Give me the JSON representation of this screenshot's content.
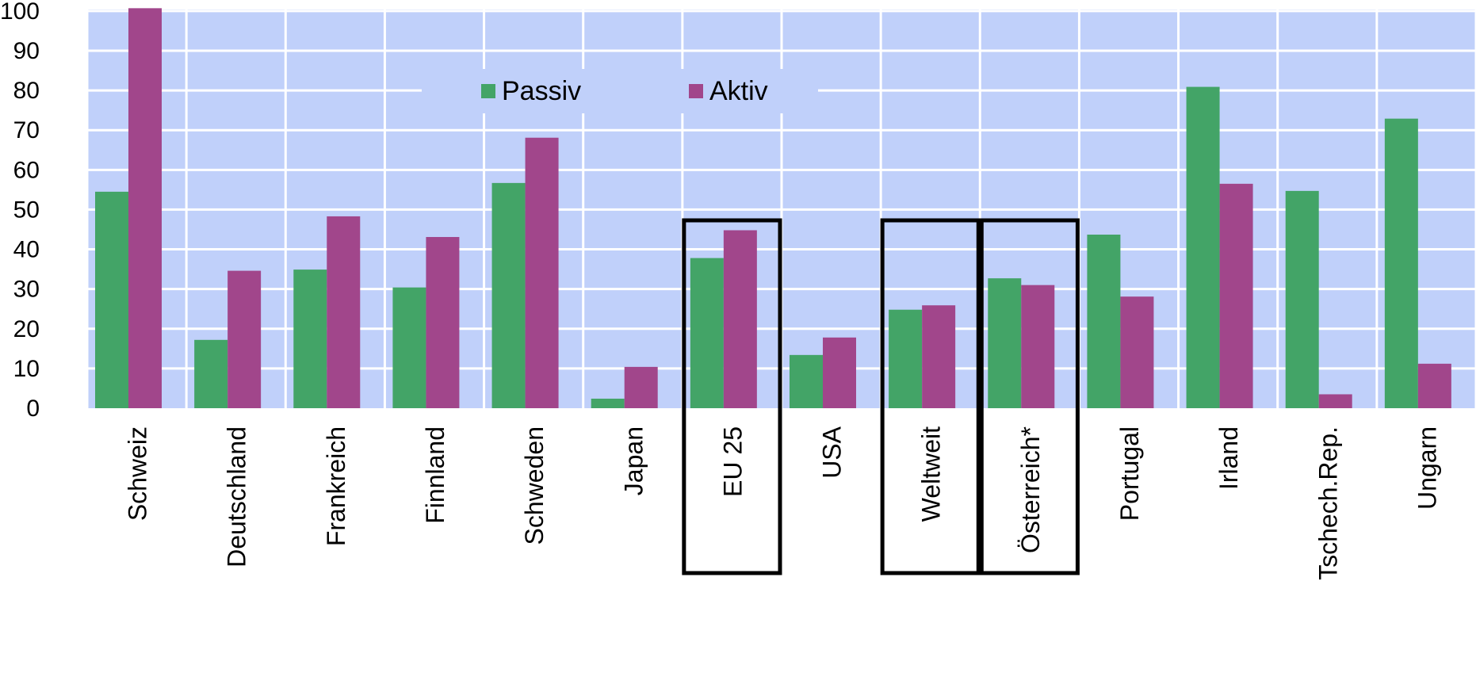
{
  "chart_data": {
    "type": "bar",
    "categories": [
      "Schweiz",
      "Deutschland",
      "Frankreich",
      "Finnland",
      "Schweden",
      "Japan",
      "EU 25",
      "USA",
      "Weltweit",
      "Österreich*",
      "Portugal",
      "Irland",
      "Tschech.Rep.",
      "Ungarn"
    ],
    "series": [
      {
        "name": "Passiv",
        "color": "#43a467",
        "values": [
          54.5,
          17.2,
          34.9,
          30.4,
          56.7,
          2.4,
          37.8,
          13.4,
          24.8,
          32.7,
          43.7,
          80.9,
          54.7,
          72.9
        ]
      },
      {
        "name": "Aktiv",
        "color": "#a1468b",
        "values": [
          100.7,
          34.6,
          48.3,
          43.1,
          68.1,
          10.4,
          44.8,
          17.8,
          25.9,
          31.0,
          28.1,
          56.5,
          3.5,
          11.2
        ]
      }
    ],
    "y_ticks": [
      "0",
      "10",
      "20",
      "30",
      "40",
      "50",
      "60",
      "70",
      "80",
      "90",
      "100"
    ],
    "ylim": [
      0,
      100
    ],
    "grid": true,
    "legend_position": "top-center",
    "plot_background": "#c0d0fa",
    "grid_color": "#ffffff",
    "highlighted_categories": [
      "EU 25",
      "Weltweit",
      "Österreich*"
    ]
  }
}
